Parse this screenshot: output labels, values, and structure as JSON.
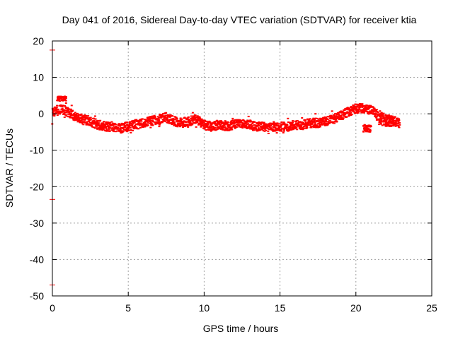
{
  "chart_data": {
    "type": "scatter",
    "title": "Day 041 of 2016, Sidereal Day-to-day VTEC variation (SDTVAR) for receiver ktia",
    "xlabel": "GPS time / hours",
    "ylabel": "SDTVAR / TECUs",
    "xlim": [
      0,
      25
    ],
    "ylim": [
      -50,
      20
    ],
    "xticks": [
      0,
      5,
      10,
      15,
      20,
      25
    ],
    "yticks": [
      -50,
      -40,
      -30,
      -20,
      -10,
      0,
      10,
      20
    ],
    "xtick_labels": [
      "0",
      "5",
      "10",
      "15",
      "20",
      "25"
    ],
    "ytick_labels": [
      "-50",
      "-40",
      "-30",
      "-20",
      "-10",
      "0",
      "10",
      "20"
    ],
    "grid": true,
    "marker_color": "#ff0000",
    "series": [
      {
        "name": "SDTVAR",
        "trend_x": [
          0.0,
          0.3,
          0.5,
          0.8,
          1.2,
          1.6,
          2.0,
          2.5,
          3.0,
          3.5,
          4.0,
          4.5,
          5.0,
          5.5,
          6.0,
          6.5,
          7.0,
          7.5,
          8.0,
          8.5,
          9.0,
          9.5,
          10.0,
          10.5,
          11.0,
          11.5,
          12.0,
          12.5,
          13.0,
          13.5,
          14.0,
          14.5,
          15.0,
          15.5,
          16.0,
          16.5,
          17.0,
          17.5,
          18.0,
          18.5,
          19.0,
          19.5,
          20.0,
          20.5,
          21.0,
          21.5,
          22.0,
          22.5,
          22.9
        ],
        "trend_y": [
          0.5,
          1.0,
          1.2,
          1.0,
          0.0,
          -1.0,
          -1.5,
          -2.0,
          -3.0,
          -3.5,
          -3.5,
          -4.0,
          -3.5,
          -3.0,
          -2.5,
          -2.0,
          -1.5,
          -1.0,
          -2.0,
          -2.5,
          -2.0,
          -1.5,
          -3.0,
          -3.5,
          -3.0,
          -3.5,
          -3.0,
          -2.8,
          -3.0,
          -3.5,
          -3.5,
          -3.5,
          -3.5,
          -3.5,
          -3.0,
          -3.0,
          -2.5,
          -2.5,
          -2.0,
          -1.5,
          -0.5,
          0.5,
          1.5,
          1.5,
          1.0,
          -0.5,
          -1.5,
          -2.0,
          -2.5
        ],
        "spread": 1.3,
        "extras": [
          {
            "x": [
              0.3,
              0.9
            ],
            "y": [
              3.5,
              4.8
            ]
          },
          {
            "x": [
              20.5,
              21.0
            ],
            "y": [
              -5.0,
              -3.0
            ]
          },
          {
            "x": [
              21.5,
              22.5
            ],
            "y": [
              -3.5,
              -1.0
            ]
          }
        ]
      }
    ],
    "edge_marks_y": [
      17.5,
      -23.5,
      -47.0
    ]
  }
}
